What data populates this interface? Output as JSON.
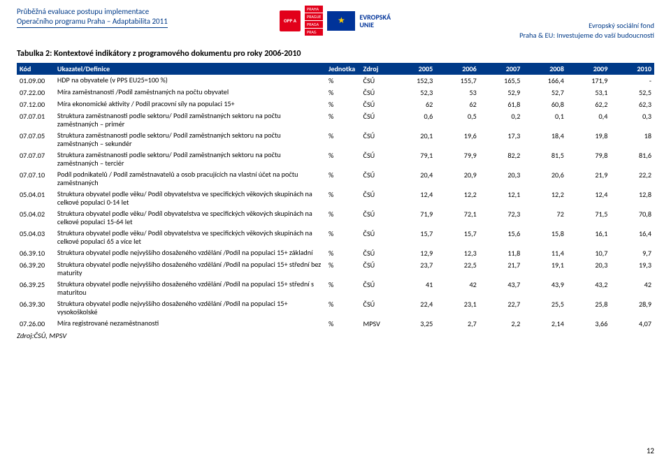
{
  "header": {
    "line1": "Průběžná evaluace postupu implementace",
    "line2": "Operačního programu Praha – Adaptabilita 2011",
    "eu_label1": "EVROPSKÁ",
    "eu_label2": "UNIE",
    "right1": "Evropský sociální fond",
    "right2": "Praha & EU: Investujeme do vaší budoucnosti",
    "opp": "OPP A",
    "praha1": "PRAHA",
    "praha2": "PRAGUE",
    "praha3": "PRAGA",
    "praha4": "PRAG"
  },
  "table": {
    "title": "Tabulka 2: Kontextové indikátory z programového dokumentu pro roky 2006-2010",
    "cols": {
      "code": "Kód",
      "ind": "Ukazatel/Definice",
      "unit": "Jednotka",
      "src": "Zdroj",
      "y2005": "2005",
      "y2006": "2006",
      "y2007": "2007",
      "y2008": "2008",
      "y2009": "2009",
      "y2010": "2010"
    },
    "rows": [
      {
        "code": "01.09.00",
        "ind": "HDP na obyvatele (v PPS EU25=100 %)",
        "unit": "%",
        "src": "ČSÚ",
        "v": [
          "152,3",
          "155,7",
          "165,5",
          "166,4",
          "171,9",
          "-"
        ]
      },
      {
        "code": "07.22.00",
        "ind": "Míra zaměstnanosti /Podíl zaměstnaných na počtu obyvatel",
        "unit": "%",
        "src": "ČSÚ",
        "v": [
          "52,3",
          "53",
          "52,9",
          "52,7",
          "53,1",
          "52,5"
        ]
      },
      {
        "code": "07.12.00",
        "ind": "Míra ekonomické aktivity / Podíl pracovní síly na populaci 15+",
        "unit": "%",
        "src": "ČSÚ",
        "v": [
          "62",
          "62",
          "61,8",
          "60,8",
          "62,2",
          "62,3"
        ]
      },
      {
        "code": "07.07.01",
        "ind": "Struktura zaměstnanosti podle sektoru/ Podíl zaměstnaných sektoru na počtu zaměstnaných – primér",
        "unit": "%",
        "src": "ČSÚ",
        "v": [
          "0,6",
          "0,5",
          "0,2",
          "0,1",
          "0,4",
          "0,3"
        ]
      },
      {
        "code": "07.07.05",
        "ind": "Struktura zaměstnanosti podle sektoru/ Podíl zaměstnaných sektoru na počtu zaměstnaných – sekundér",
        "unit": "%",
        "src": "ČSÚ",
        "v": [
          "20,1",
          "19,6",
          "17,3",
          "18,4",
          "19,8",
          "18"
        ]
      },
      {
        "code": "07.07.07",
        "ind": "Struktura zaměstnanosti podle sektoru/ Podíl zaměstnaných sektoru na počtu zaměstnaných – terciér",
        "unit": "%",
        "src": "ČSÚ",
        "v": [
          "79,1",
          "79,9",
          "82,2",
          "81,5",
          "79,8",
          "81,6"
        ]
      },
      {
        "code": "07.07.10",
        "ind": "Podíl podnikatelů / Podíl zaměstnavatelů a osob pracujících na vlastní účet na počtu zaměstnaných",
        "unit": "%",
        "src": "ČSÚ",
        "v": [
          "20,4",
          "20,9",
          "20,3",
          "20,6",
          "21,9",
          "22,2"
        ]
      },
      {
        "code": "05.04.01",
        "ind": "Struktura obyvatel podle věku/ Podíl obyvatelstva ve specifických věkových skupinách na celkové populaci 0-14 let",
        "unit": "%",
        "src": "ČSÚ",
        "v": [
          "12,4",
          "12,2",
          "12,1",
          "12,2",
          "12,4",
          "12,8"
        ]
      },
      {
        "code": "05.04.02",
        "ind": "Struktura obyvatel podle věku/ Podíl obyvatelstva ve specifických věkových skupinách na celkové populaci 15-64 let",
        "unit": "%",
        "src": "ČSÚ",
        "v": [
          "71,9",
          "72,1",
          "72,3",
          "72",
          "71,5",
          "70,8"
        ]
      },
      {
        "code": "05.04.03",
        "ind": "Struktura obyvatel podle věku/ Podíl obyvatelstva ve specifických věkových skupinách na celkové populaci 65 a více let",
        "unit": "%",
        "src": "ČSÚ",
        "v": [
          "15,7",
          "15,7",
          "15,6",
          "15,8",
          "16,1",
          "16,4"
        ]
      },
      {
        "code": "06.39.10",
        "ind": "Struktura obyvatel podle nejvyššího dosaženého vzdělání /Podíl na populaci 15+ základní",
        "unit": "%",
        "src": "ČSÚ",
        "v": [
          "12,9",
          "12,3",
          "11,8",
          "11,4",
          "10,7",
          "9,7"
        ]
      },
      {
        "code": "06.39.20",
        "ind": "Struktura obyvatel podle nejvyššího dosaženého vzdělání /Podíl na populaci 15+ střední bez maturity",
        "unit": "%",
        "src": "ČSÚ",
        "v": [
          "23,7",
          "22,5",
          "21,7",
          "19,1",
          "20,3",
          "19,3"
        ]
      },
      {
        "code": "06.39.25",
        "ind": "Struktura obyvatel podle nejvyššího dosaženého vzdělání /Podíl na populaci 15+ střední s maturitou",
        "unit": "%",
        "src": "ČSÚ",
        "v": [
          "41",
          "42",
          "43,7",
          "43,9",
          "43,2",
          "42"
        ]
      },
      {
        "code": "06.39.30",
        "ind": "Struktura obyvatel podle nejvyššího dosaženého vzdělání /Podíl na populaci 15+ vysokoškolské",
        "unit": "%",
        "src": "ČSÚ",
        "v": [
          "22,4",
          "23,1",
          "22,7",
          "25,5",
          "25,8",
          "28,9"
        ]
      },
      {
        "code": "07.26.00",
        "ind": "Míra registrované nezaměstnanosti",
        "unit": "%",
        "src": "MPSV",
        "v": [
          "3,25",
          "2,7",
          "2,2",
          "2,14",
          "3,66",
          "4,07"
        ]
      }
    ],
    "source": "Zdroj:ČSÚ, MPSV"
  },
  "footer": {
    "page": "12"
  },
  "colors": {
    "header_blue": "#003a88",
    "brand_red": "#e2001a",
    "eu_blue": "#003399",
    "eu_gold": "#ffcc00",
    "bg": "#ffffff"
  }
}
